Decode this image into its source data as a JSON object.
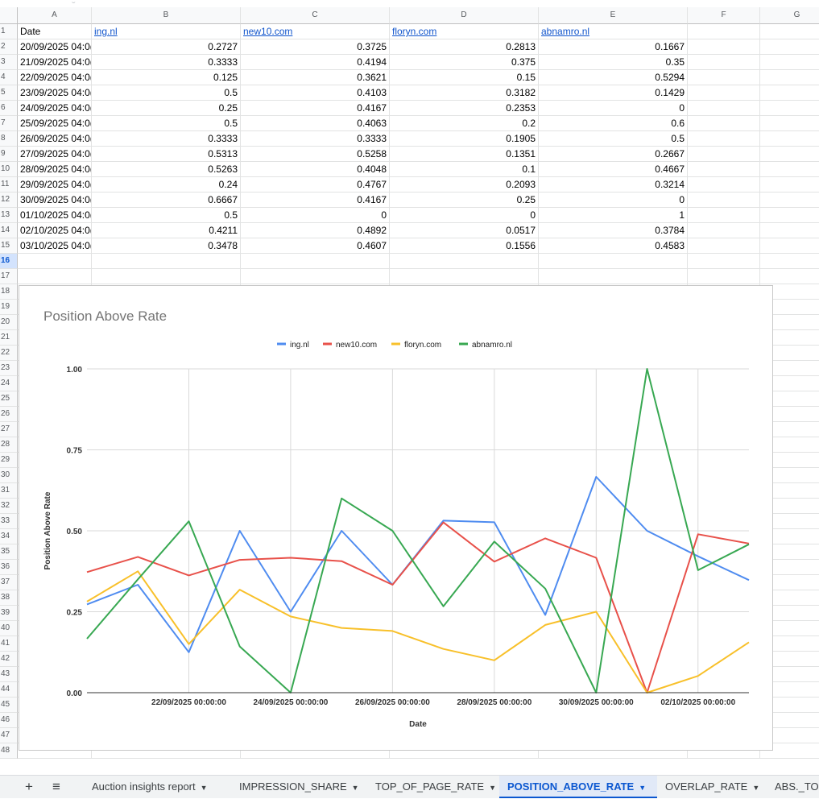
{
  "sheet": {
    "columns": [
      "A",
      "B",
      "C",
      "D",
      "E",
      "F",
      "G"
    ],
    "headers": [
      "Date",
      "ing.nl",
      "new10.com",
      "floryn.com",
      "abnamro.nl"
    ],
    "rows": [
      [
        "20/09/2025 04:0(",
        "0.2727",
        "0.3725",
        "0.2813",
        "0.1667"
      ],
      [
        "21/09/2025 04:0(",
        "0.3333",
        "0.4194",
        "0.375",
        "0.35"
      ],
      [
        "22/09/2025 04:0(",
        "0.125",
        "0.3621",
        "0.15",
        "0.5294"
      ],
      [
        "23/09/2025 04:0(",
        "0.5",
        "0.4103",
        "0.3182",
        "0.1429"
      ],
      [
        "24/09/2025 04:0(",
        "0.25",
        "0.4167",
        "0.2353",
        "0"
      ],
      [
        "25/09/2025 04:0(",
        "0.5",
        "0.4063",
        "0.2",
        "0.6"
      ],
      [
        "26/09/2025 04:0(",
        "0.3333",
        "0.3333",
        "0.1905",
        "0.5"
      ],
      [
        "27/09/2025 04:0(",
        "0.5313",
        "0.5258",
        "0.1351",
        "0.2667"
      ],
      [
        "28/09/2025 04:0(",
        "0.5263",
        "0.4048",
        "0.1",
        "0.4667"
      ],
      [
        "29/09/2025 04:0(",
        "0.24",
        "0.4767",
        "0.2093",
        "0.3214"
      ],
      [
        "30/09/2025 04:0(",
        "0.6667",
        "0.4167",
        "0.25",
        "0"
      ],
      [
        "01/10/2025 04:0(",
        "0.5",
        "0",
        "0",
        "1"
      ],
      [
        "02/10/2025 04:0(",
        "0.4211",
        "0.4892",
        "0.0517",
        "0.3784"
      ],
      [
        "03/10/2025 04:0(",
        "0.3478",
        "0.4607",
        "0.1556",
        "0.4583"
      ]
    ],
    "row_labels": [
      "1",
      "2",
      "3",
      "4",
      "5",
      "6",
      "7",
      "8",
      "9",
      "10",
      "11",
      "12",
      "13",
      "14",
      "15",
      "16",
      "17",
      "18",
      "19",
      "20",
      "21",
      "22",
      "23",
      "24",
      "25",
      "26",
      "27",
      "28",
      "29",
      "30",
      "31",
      "32",
      "33",
      "34",
      "35",
      "36",
      "37",
      "38",
      "39",
      "40",
      "41",
      "42",
      "43",
      "44",
      "45",
      "46",
      "47",
      "48"
    ]
  },
  "chart_data": {
    "type": "line",
    "title": "Position Above Rate",
    "xlabel": "Date",
    "ylabel": "Position Above Rate",
    "ylim": [
      0,
      1
    ],
    "y_ticks": [
      "0.00",
      "0.25",
      "0.50",
      "0.75",
      "1.00"
    ],
    "x": [
      "20/09/2025",
      "21/09/2025",
      "22/09/2025",
      "23/09/2025",
      "24/09/2025",
      "25/09/2025",
      "26/09/2025",
      "27/09/2025",
      "28/09/2025",
      "29/09/2025",
      "30/09/2025",
      "01/10/2025",
      "02/10/2025",
      "03/10/2025"
    ],
    "x_tick_labels": [
      "22/09/2025 00:00:00",
      "24/09/2025 00:00:00",
      "26/09/2025 00:00:00",
      "28/09/2025 00:00:00",
      "30/09/2025 00:00:00",
      "02/10/2025 00:00:00"
    ],
    "legend_position": "top",
    "grid": true,
    "series": [
      {
        "name": "ing.nl",
        "color": "#4f8cf0",
        "values": [
          0.2727,
          0.3333,
          0.125,
          0.5,
          0.25,
          0.5,
          0.3333,
          0.5313,
          0.5263,
          0.24,
          0.6667,
          0.5,
          0.4211,
          0.3478
        ]
      },
      {
        "name": "new10.com",
        "color": "#e8514a",
        "values": [
          0.3725,
          0.4194,
          0.3621,
          0.4103,
          0.4167,
          0.4063,
          0.3333,
          0.5258,
          0.4048,
          0.4767,
          0.4167,
          0,
          0.4892,
          0.4607
        ]
      },
      {
        "name": "floryn.com",
        "color": "#f8c02a",
        "values": [
          0.2813,
          0.375,
          0.15,
          0.3182,
          0.2353,
          0.2,
          0.1905,
          0.1351,
          0.1,
          0.2093,
          0.25,
          0,
          0.0517,
          0.1556
        ]
      },
      {
        "name": "abnamro.nl",
        "color": "#38a852",
        "values": [
          0.1667,
          0.35,
          0.5294,
          0.1429,
          0,
          0.6,
          0.5,
          0.2667,
          0.4667,
          0.3214,
          0,
          1,
          0.3784,
          0.4583
        ]
      }
    ]
  },
  "tabs": {
    "add_icon": "+",
    "menu_icon": "≡",
    "items": [
      {
        "label": "Auction insights report",
        "active": false
      },
      {
        "label": "IMPRESSION_SHARE",
        "active": false
      },
      {
        "label": "TOP_OF_PAGE_RATE",
        "active": false
      },
      {
        "label": "POSITION_ABOVE_RATE",
        "active": true
      },
      {
        "label": "OVERLAP_RATE",
        "active": false
      },
      {
        "label": "ABS._TO",
        "active": false
      }
    ]
  }
}
